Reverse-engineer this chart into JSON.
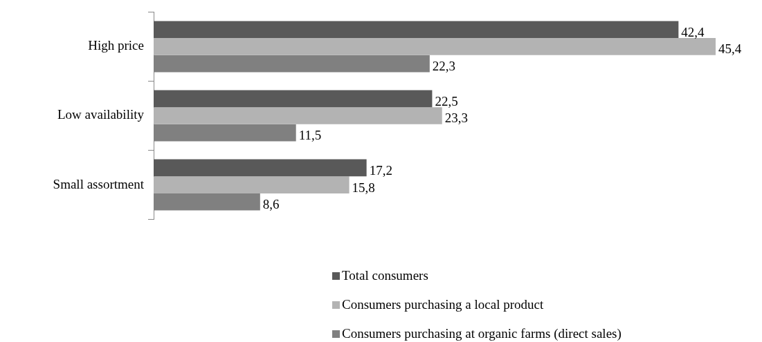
{
  "chart_data": {
    "type": "bar",
    "orientation": "horizontal",
    "categories": [
      "High price",
      "Low availability",
      "Small assortment"
    ],
    "series": [
      {
        "name": "Total consumers",
        "color": "#595959",
        "values": [
          42.4,
          22.5,
          17.2
        ],
        "value_labels": [
          "42,4",
          "22,5",
          "17,2"
        ]
      },
      {
        "name": "Consumers purchasing a local product",
        "color": "#b3b3b3",
        "values": [
          45.4,
          23.3,
          15.8
        ],
        "value_labels": [
          "45,4",
          "23,3",
          "15,8"
        ]
      },
      {
        "name": "Consumers purchasing at organic farms (direct sales)",
        "color": "#808080",
        "values": [
          22.3,
          11.5,
          8.6
        ],
        "value_labels": [
          "22,3",
          "11,5",
          "8,6"
        ]
      }
    ],
    "legend": "bottom"
  }
}
